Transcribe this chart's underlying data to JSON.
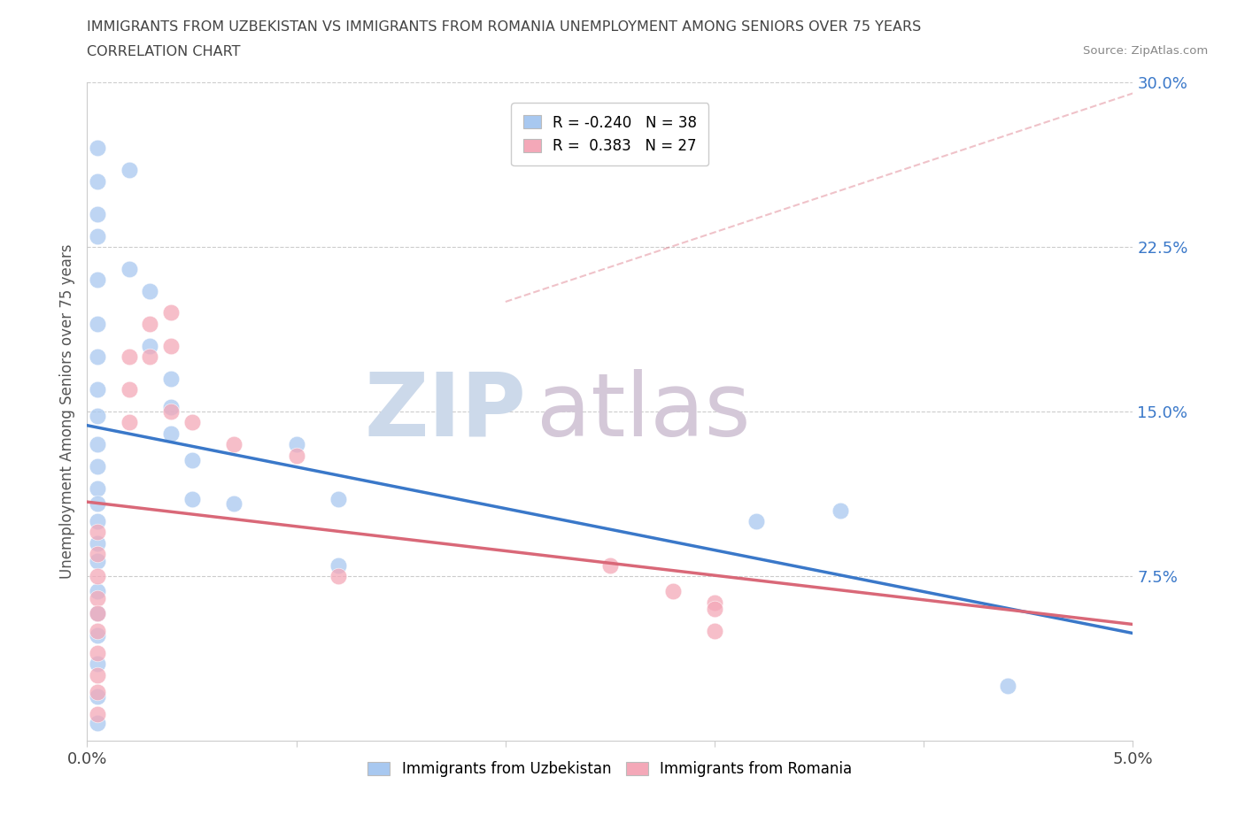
{
  "title_line1": "IMMIGRANTS FROM UZBEKISTAN VS IMMIGRANTS FROM ROMANIA UNEMPLOYMENT AMONG SENIORS OVER 75 YEARS",
  "title_line2": "CORRELATION CHART",
  "source": "Source: ZipAtlas.com",
  "ylabel": "Unemployment Among Seniors over 75 years",
  "xlim": [
    0.0,
    0.05
  ],
  "ylim": [
    0.0,
    0.3
  ],
  "xticks": [
    0.0,
    0.01,
    0.02,
    0.03,
    0.04,
    0.05
  ],
  "yticks": [
    0.0,
    0.075,
    0.15,
    0.225,
    0.3
  ],
  "xticklabels": [
    "0.0%",
    "",
    "",
    "",
    "",
    "5.0%"
  ],
  "yticklabels": [
    "",
    "7.5%",
    "15.0%",
    "22.5%",
    "30.0%"
  ],
  "r_uzbekistan": -0.24,
  "n_uzbekistan": 38,
  "r_romania": 0.383,
  "n_romania": 27,
  "color_uzbekistan": "#a8c8f0",
  "color_romania": "#f4a8b8",
  "line_color_uzbekistan": "#3a78c9",
  "line_color_romania": "#d96878",
  "watermark_zip": "ZIP",
  "watermark_atlas": "atlas",
  "watermark_color_zip": "#ccd9ea",
  "watermark_color_atlas": "#d4c8d8",
  "legend_label_uzbekistan": "Immigrants from Uzbekistan",
  "legend_label_romania": "Immigrants from Romania",
  "scatter_uzbekistan": [
    [
      0.0005,
      0.27
    ],
    [
      0.0005,
      0.255
    ],
    [
      0.0005,
      0.24
    ],
    [
      0.0005,
      0.23
    ],
    [
      0.0005,
      0.21
    ],
    [
      0.0005,
      0.19
    ],
    [
      0.0005,
      0.175
    ],
    [
      0.0005,
      0.16
    ],
    [
      0.0005,
      0.148
    ],
    [
      0.0005,
      0.135
    ],
    [
      0.0005,
      0.125
    ],
    [
      0.0005,
      0.115
    ],
    [
      0.0005,
      0.108
    ],
    [
      0.0005,
      0.1
    ],
    [
      0.0005,
      0.09
    ],
    [
      0.0005,
      0.082
    ],
    [
      0.0005,
      0.068
    ],
    [
      0.0005,
      0.058
    ],
    [
      0.0005,
      0.048
    ],
    [
      0.0005,
      0.035
    ],
    [
      0.0005,
      0.02
    ],
    [
      0.0005,
      0.008
    ],
    [
      0.002,
      0.26
    ],
    [
      0.002,
      0.215
    ],
    [
      0.003,
      0.205
    ],
    [
      0.003,
      0.18
    ],
    [
      0.004,
      0.165
    ],
    [
      0.004,
      0.152
    ],
    [
      0.004,
      0.14
    ],
    [
      0.005,
      0.128
    ],
    [
      0.005,
      0.11
    ],
    [
      0.007,
      0.108
    ],
    [
      0.01,
      0.135
    ],
    [
      0.012,
      0.11
    ],
    [
      0.012,
      0.08
    ],
    [
      0.032,
      0.1
    ],
    [
      0.036,
      0.105
    ],
    [
      0.044,
      0.025
    ]
  ],
  "scatter_romania": [
    [
      0.0005,
      0.095
    ],
    [
      0.0005,
      0.085
    ],
    [
      0.0005,
      0.075
    ],
    [
      0.0005,
      0.065
    ],
    [
      0.0005,
      0.058
    ],
    [
      0.0005,
      0.05
    ],
    [
      0.0005,
      0.04
    ],
    [
      0.0005,
      0.03
    ],
    [
      0.0005,
      0.022
    ],
    [
      0.0005,
      0.012
    ],
    [
      0.002,
      0.175
    ],
    [
      0.002,
      0.16
    ],
    [
      0.002,
      0.145
    ],
    [
      0.003,
      0.19
    ],
    [
      0.003,
      0.175
    ],
    [
      0.004,
      0.195
    ],
    [
      0.004,
      0.18
    ],
    [
      0.004,
      0.15
    ],
    [
      0.005,
      0.145
    ],
    [
      0.007,
      0.135
    ],
    [
      0.01,
      0.13
    ],
    [
      0.012,
      0.075
    ],
    [
      0.025,
      0.08
    ],
    [
      0.028,
      0.068
    ],
    [
      0.03,
      0.063
    ],
    [
      0.03,
      0.06
    ],
    [
      0.03,
      0.05
    ]
  ]
}
